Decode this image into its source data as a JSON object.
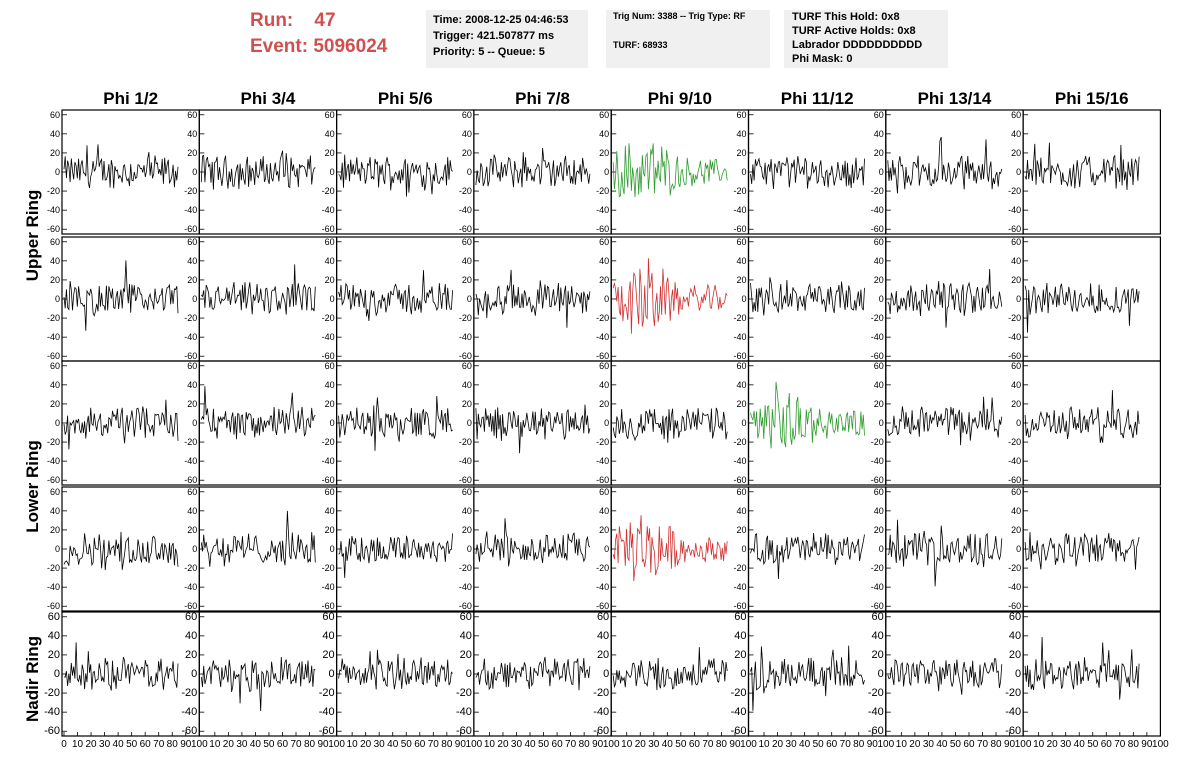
{
  "header": {
    "run_label": "Run:",
    "run_value": "47",
    "event_label": "Event:",
    "event_value": "5096024"
  },
  "info_time": {
    "time": "Time: 2008-12-25 04:46:53",
    "trigger": "Trigger: 421.507877 ms",
    "priority": "Priority: 5 -- Queue: 5"
  },
  "info_trig": {
    "trig": "Trig Num: 3388 -- Trig Type: RF",
    "turf": "TURF: 68933"
  },
  "info_turf": {
    "this_hold": "TURF This Hold: 0x8",
    "active_holds": "TURF Active Holds: 0x8",
    "labrador": "Labrador DDDDDDDDDD",
    "phi_mask": "Phi Mask: 0"
  },
  "colors": {
    "accent": "#d05050",
    "trace": "#000000",
    "green": "#2e9b2e",
    "red": "#d03030"
  },
  "chart_data": {
    "type": "line",
    "columns": [
      "Phi 1/2",
      "Phi 3/4",
      "Phi 5/6",
      "Phi 7/8",
      "Phi 9/10",
      "Phi 11/12",
      "Phi 13/14",
      "Phi 15/16"
    ],
    "ring_labels": [
      "Upper Ring",
      "Lower Ring",
      "Nadir Ring"
    ],
    "xlim": [
      0,
      100
    ],
    "ylim": [
      -65,
      65
    ],
    "x_ticks": [
      0,
      10,
      20,
      30,
      40,
      50,
      60,
      70,
      80,
      90,
      100
    ],
    "y_ticks": [
      -60,
      -40,
      -20,
      0,
      20,
      40,
      60
    ],
    "samples": 95,
    "typical_amplitude": 15,
    "highlighted": [
      {
        "row": 0,
        "col": 4,
        "color": "green"
      },
      {
        "row": 1,
        "col": 4,
        "color": "red"
      },
      {
        "row": 2,
        "col": 5,
        "color": "green"
      },
      {
        "row": 3,
        "col": 4,
        "color": "red"
      }
    ]
  }
}
